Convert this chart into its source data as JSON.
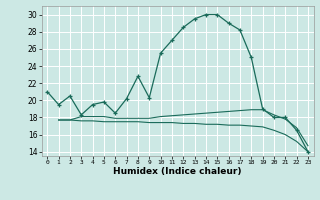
{
  "xlabel": "Humidex (Indice chaleur)",
  "bg_color": "#cce8e4",
  "grid_color": "#ffffff",
  "line_color": "#1a6b5a",
  "xlim": [
    -0.5,
    23.5
  ],
  "ylim": [
    13.5,
    31.0
  ],
  "yticks": [
    14,
    16,
    18,
    20,
    22,
    24,
    26,
    28,
    30
  ],
  "xticks": [
    0,
    1,
    2,
    3,
    4,
    5,
    6,
    7,
    8,
    9,
    10,
    11,
    12,
    13,
    14,
    15,
    16,
    17,
    18,
    19,
    20,
    21,
    22,
    23
  ],
  "curve1_x": [
    0,
    1,
    2,
    3,
    4,
    5,
    6,
    7,
    8,
    9,
    10,
    11,
    12,
    13,
    14,
    15,
    16,
    17,
    18,
    19,
    20,
    21,
    22,
    23
  ],
  "curve1_y": [
    21.0,
    19.5,
    20.5,
    18.3,
    19.5,
    19.8,
    18.5,
    20.2,
    22.8,
    20.3,
    25.5,
    27.0,
    28.5,
    29.5,
    30.0,
    30.0,
    29.0,
    28.2,
    25.0,
    19.0,
    18.0,
    18.0,
    16.5,
    14.0
  ],
  "curve2_x": [
    1,
    2,
    3,
    4,
    5,
    6,
    7,
    8,
    9,
    10,
    11,
    12,
    13,
    14,
    15,
    16,
    17,
    18,
    19,
    20,
    21,
    22,
    23
  ],
  "curve2_y": [
    17.7,
    17.7,
    18.1,
    18.1,
    18.1,
    17.9,
    17.9,
    17.9,
    17.9,
    18.1,
    18.2,
    18.3,
    18.4,
    18.5,
    18.6,
    18.7,
    18.8,
    18.9,
    18.9,
    18.3,
    17.8,
    16.8,
    14.7
  ],
  "curve3_x": [
    1,
    2,
    3,
    4,
    5,
    6,
    7,
    8,
    9,
    10,
    11,
    12,
    13,
    14,
    15,
    16,
    17,
    18,
    19,
    20,
    21,
    22,
    23
  ],
  "curve3_y": [
    17.7,
    17.7,
    17.6,
    17.6,
    17.5,
    17.5,
    17.5,
    17.5,
    17.4,
    17.4,
    17.4,
    17.3,
    17.3,
    17.2,
    17.2,
    17.1,
    17.1,
    17.0,
    16.9,
    16.5,
    16.0,
    15.2,
    14.0
  ]
}
